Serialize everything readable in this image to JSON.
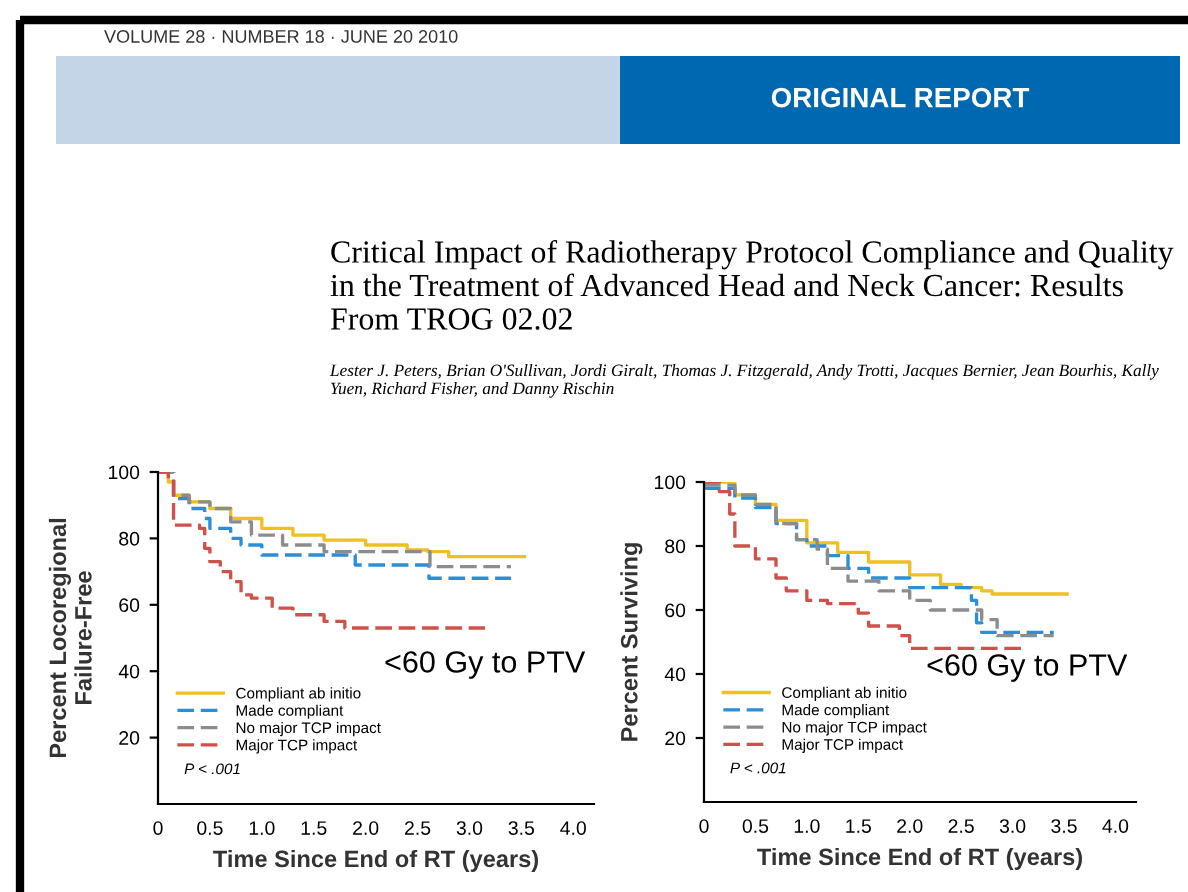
{
  "chart_data": [
    {
      "type": "other",
      "title": "Critical Impact of Radiotherapy Protocol Compliance and Quality in the Treatment of Advanced Head and Neck Cancer: Results From TROG 02.02",
      "subtitle": "Lester J. Peters, Brian O'Sullivan, Jordi Giralt, Thomas J. Fitzgerald, Andy Trotti, Jacques Bernier, Jean Bourhis, Kally Yuen, Richard Fisher, and Danny Rischin",
      "annotations": [
        "VOLUME 28 · NUMBER 18 · JUNE 20 2010",
        "ORIGINAL REPORT"
      ]
    },
    {
      "type": "step",
      "xlabel": "Time Since End of RT (years)",
      "ylabel": "Percent Locoregional\nFailure-Free",
      "xlim": [
        0,
        4.2
      ],
      "ylim": [
        0,
        100
      ],
      "xticks": [
        0,
        {
          "value": 0.5,
          "label": "0.5"
        },
        {
          "value": 1.0,
          "label": "1.0"
        },
        {
          "value": 1.5,
          "label": "1.5"
        },
        {
          "value": 2.0,
          "label": "2.0"
        },
        {
          "value": 2.5,
          "label": "2.5"
        },
        {
          "value": 3.0,
          "label": "3.0"
        },
        {
          "value": 3.5,
          "label": "3.5"
        },
        {
          "value": 4.0,
          "label": "4.0"
        }
      ],
      "yticks": [
        20,
        40,
        60,
        80,
        100
      ],
      "legend": "bottom left",
      "annotations": [
        "<60 Gy to PTV",
        "P < .001"
      ],
      "series": [
        {
          "name": "Compliant ab initio",
          "color": "#f0c020",
          "line_style": "solid",
          "x": [
            0,
            0.1,
            0.15,
            0.3,
            0.5,
            0.7,
            1.0,
            1.3,
            1.6,
            2.0,
            2.4,
            2.6,
            2.8,
            3.53
          ],
          "values": [
            100,
            97,
            93,
            91,
            89,
            86,
            83,
            81,
            79.5,
            78,
            76.5,
            76,
            74.5,
            74.5
          ]
        },
        {
          "name": "Made compliant",
          "color": "#2a8fd6",
          "line_style": "dashed",
          "x": [
            0,
            0.15,
            0.3,
            0.45,
            0.5,
            0.7,
            0.8,
            1.0,
            1.5,
            1.9,
            2.6,
            2.61,
            3.4
          ],
          "values": [
            100,
            92,
            89,
            86,
            83,
            80,
            78,
            75,
            75,
            72,
            72,
            68,
            68
          ]
        },
        {
          "name": "No major TCP impact",
          "color": "#8c8c8c",
          "line_style": "dashed",
          "x": [
            0,
            0.15,
            0.3,
            0.5,
            0.7,
            0.9,
            1.2,
            1.6,
            2.0,
            2.6,
            2.62,
            3.4
          ],
          "values": [
            100,
            93,
            91,
            89,
            85,
            81,
            78,
            76,
            76,
            76,
            71.5,
            71.5
          ]
        },
        {
          "name": "Major TCP impact",
          "color": "#d0504a",
          "line_style": "dashed",
          "x": [
            0,
            0.1,
            0.15,
            0.4,
            0.45,
            0.5,
            0.6,
            0.7,
            0.8,
            0.9,
            1.1,
            1.3,
            1.5,
            1.6,
            1.8,
            3.15
          ],
          "values": [
            100,
            98,
            84,
            83,
            77,
            73,
            70,
            67,
            63,
            62,
            59,
            57,
            57,
            55,
            53,
            53
          ]
        }
      ]
    },
    {
      "type": "step",
      "xlabel": "Time Since End of RT (years)",
      "ylabel": "Percent Surviving",
      "xlim": [
        0,
        4.2
      ],
      "ylim": [
        0,
        100
      ],
      "xticks": [
        0,
        {
          "value": 0.5,
          "label": "0.5"
        },
        {
          "value": 1.0,
          "label": "1.0"
        },
        {
          "value": 1.5,
          "label": "1.5"
        },
        {
          "value": 2.0,
          "label": "2.0"
        },
        {
          "value": 2.5,
          "label": "2.5"
        },
        {
          "value": 3.0,
          "label": "3.0"
        },
        {
          "value": 3.5,
          "label": "3.5"
        },
        {
          "value": 4.0,
          "label": "4.0"
        }
      ],
      "yticks": [
        20,
        40,
        60,
        80,
        100
      ],
      "legend": "bottom left",
      "annotations": [
        "<60 Gy to PTV",
        "P < .001"
      ],
      "series": [
        {
          "name": "Compliant ab initio",
          "color": "#f0c020",
          "line_style": "solid",
          "x": [
            0,
            0.3,
            0.5,
            0.7,
            1.0,
            1.3,
            1.6,
            2.0,
            2.3,
            2.5,
            2.7,
            2.8,
            3.53
          ],
          "values": [
            100,
            96,
            93,
            88,
            81,
            78,
            75,
            71,
            68,
            67,
            66,
            65,
            65
          ]
        },
        {
          "name": "Made compliant",
          "color": "#2a8fd6",
          "line_style": "dashed",
          "x": [
            0,
            0.3,
            0.5,
            0.7,
            0.9,
            1.0,
            1.2,
            1.4,
            1.6,
            2.0,
            2.55,
            2.6,
            2.65,
            2.7,
            3.4
          ],
          "values": [
            98,
            95,
            92,
            87,
            82,
            80,
            77,
            73,
            70,
            67,
            67,
            63,
            56,
            53,
            53
          ]
        },
        {
          "name": "No major TCP impact",
          "color": "#8c8c8c",
          "line_style": "dashed",
          "x": [
            0,
            0.3,
            0.5,
            0.7,
            0.9,
            1.1,
            1.2,
            1.4,
            1.7,
            2.0,
            2.2,
            2.6,
            2.7,
            2.85,
            3.4
          ],
          "values": [
            99,
            96,
            93,
            87,
            82,
            79,
            73,
            69,
            66,
            63,
            60,
            60,
            57,
            52,
            52
          ]
        },
        {
          "name": "Major TCP impact",
          "color": "#d0504a",
          "line_style": "dashed",
          "x": [
            0,
            0.15,
            0.25,
            0.3,
            0.5,
            0.7,
            0.8,
            1.0,
            1.2,
            1.5,
            1.6,
            1.9,
            2.0,
            3.13
          ],
          "values": [
            100,
            97,
            90,
            80,
            76,
            70,
            66,
            63,
            62,
            59,
            55,
            52,
            48,
            48
          ]
        }
      ]
    }
  ]
}
